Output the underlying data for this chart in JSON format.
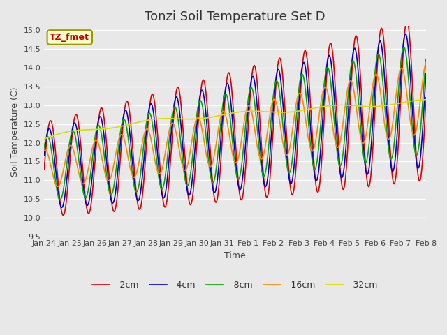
{
  "title": "Tonzi Soil Temperature Set D",
  "xlabel": "Time",
  "ylabel": "Soil Temperature (C)",
  "ylim": [
    9.5,
    15.1
  ],
  "background_color": "#e8e8e8",
  "series_colors": {
    "-2cm": "#dd0000",
    "-4cm": "#0000cc",
    "-8cm": "#00aa00",
    "-16cm": "#ff8800",
    "-32cm": "#dddd00"
  },
  "xtick_labels": [
    "Jan 24",
    "Jan 25",
    "Jan 26",
    "Jan 27",
    "Jan 28",
    "Jan 29",
    "Jan 30",
    "Jan 31",
    "Feb 1",
    "Feb 2",
    "Feb 3",
    "Feb 4",
    "Feb 5",
    "Feb 6",
    "Feb 7",
    "Feb 8"
  ],
  "title_fontsize": 13,
  "axis_fontsize": 9,
  "tick_fontsize": 8,
  "legend_annotation": "TZ_fmet",
  "legend_box_color": "#ffffcc",
  "legend_box_edge": "#999900"
}
